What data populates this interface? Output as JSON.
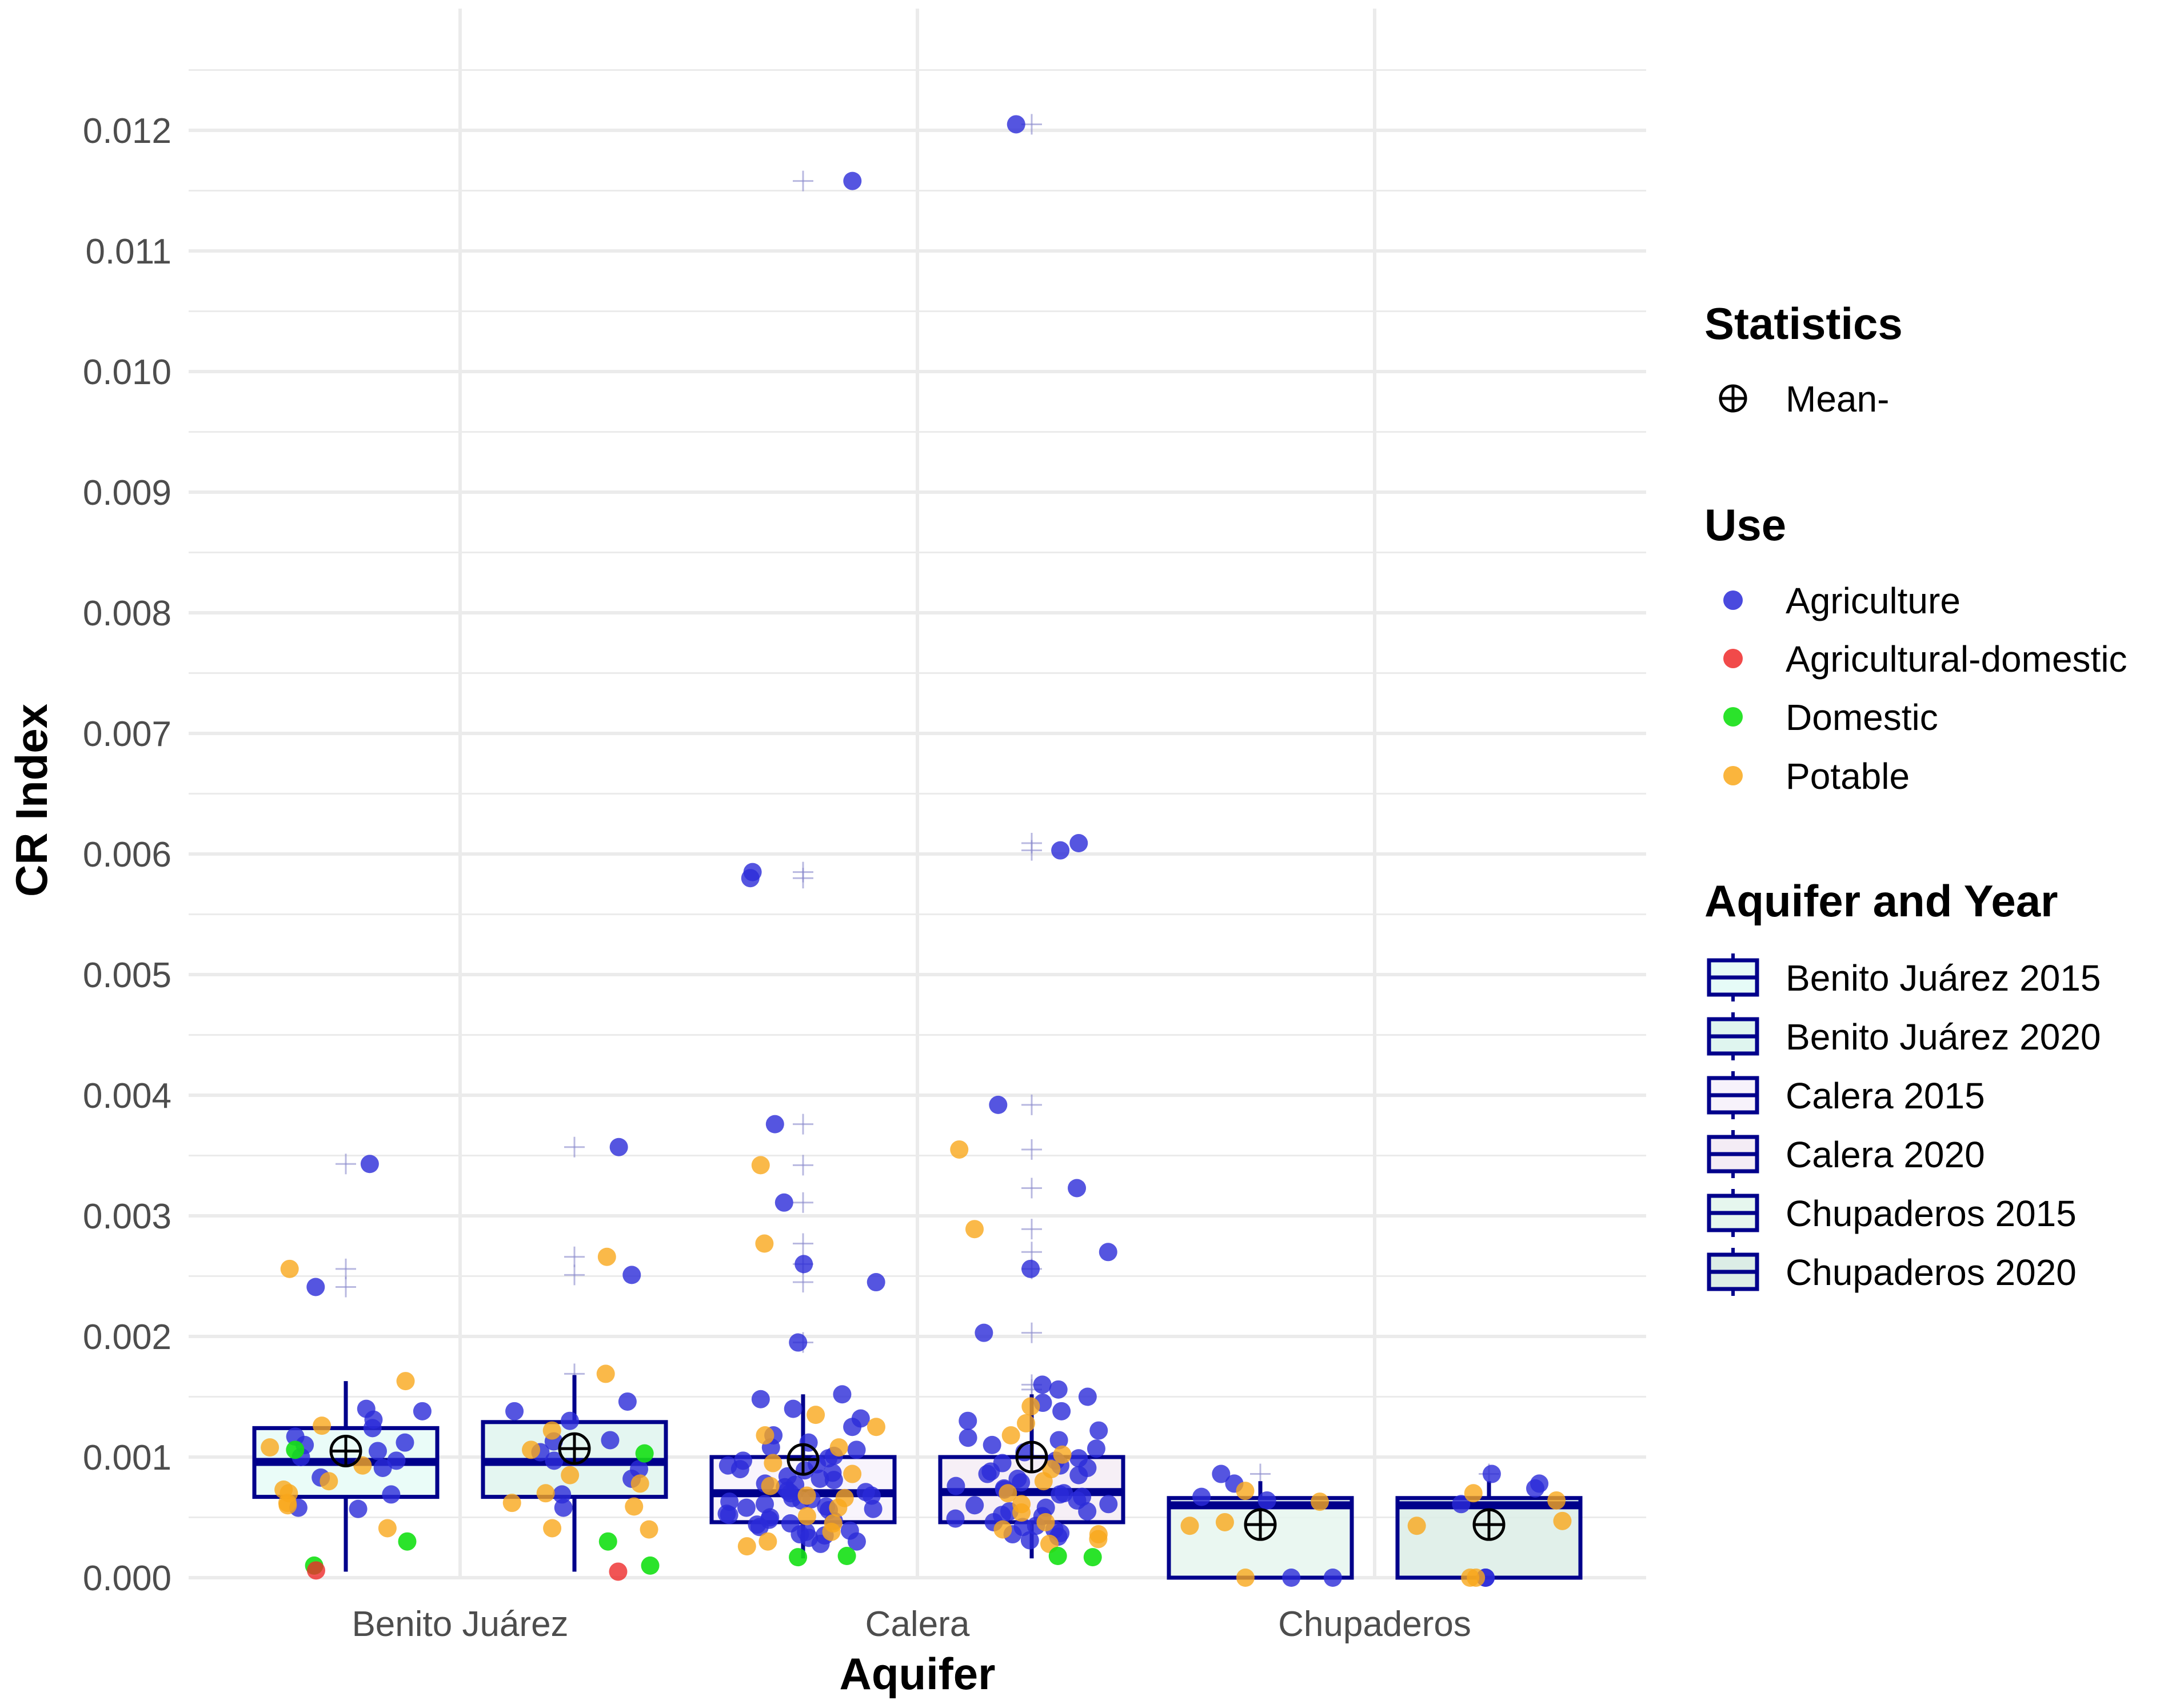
{
  "chart_data": {
    "type": "boxplot-jitter",
    "xlabel": "Aquifer",
    "ylabel": "CR Index",
    "ylim": [
      0,
      0.0126
    ],
    "y_ticks": [
      "0.000",
      "0.001",
      "0.002",
      "0.003",
      "0.004",
      "0.005",
      "0.006",
      "0.007",
      "0.008",
      "0.009",
      "0.010",
      "0.011",
      "0.012"
    ],
    "y_tick_values": [
      0,
      0.001,
      0.002,
      0.003,
      0.004,
      0.005,
      0.006,
      0.007,
      0.008,
      0.009,
      0.01,
      0.011,
      0.012
    ],
    "categories": [
      "Benito Juárez",
      "Calera",
      "Chupaderos"
    ],
    "colors": {
      "Agriculture": "#2a2ad8",
      "Agricultural-domestic": "#ee2a2a",
      "Domestic": "#14e014",
      "Potable": "#f9a81b",
      "box_stroke": "#00008b",
      "grid": "#ebebeb",
      "mean": "#000000"
    },
    "boxes": [
      {
        "group": "Benito Juárez 2015",
        "category": "Benito Juárez",
        "slot": 0,
        "q1": 0.00067,
        "median": 0.00096,
        "q3": 0.00124,
        "whisker_low": 5e-05,
        "whisker_high": 0.00163,
        "mean": 0.00105,
        "fill": "#e6fbf7"
      },
      {
        "group": "Benito Juárez 2020",
        "category": "Benito Juárez",
        "slot": 1,
        "q1": 0.00067,
        "median": 0.00096,
        "q3": 0.00129,
        "whisker_low": 5e-05,
        "whisker_high": 0.00168,
        "mean": 0.00107,
        "fill": "#dff5ef"
      },
      {
        "group": "Calera 2015",
        "category": "Calera",
        "slot": 0,
        "q1": 0.00046,
        "median": 0.0007,
        "q3": 0.001,
        "whisker_low": 0.00016,
        "whisker_high": 0.00152,
        "mean": 0.00098,
        "fill": "#f7f2fb"
      },
      {
        "group": "Calera 2020",
        "category": "Calera",
        "slot": 1,
        "q1": 0.00046,
        "median": 0.00071,
        "q3": 0.001,
        "whisker_low": 0.00016,
        "whisker_high": 0.00152,
        "mean": 0.001,
        "fill": "#f4ecf5"
      },
      {
        "group": "Chupaderos 2015",
        "category": "Chupaderos",
        "slot": 0,
        "q1": 0.0,
        "median": 0.0006,
        "q3": 0.00066,
        "whisker_low": 0.0,
        "whisker_high": 0.0008,
        "mean": 0.00044,
        "fill": "#e6f6ee"
      },
      {
        "group": "Chupaderos 2020",
        "category": "Chupaderos",
        "slot": 1,
        "q1": 0.0,
        "median": 0.0006,
        "q3": 0.00066,
        "whisker_low": 0.0,
        "whisker_high": 0.0008,
        "mean": 0.00044,
        "fill": "#dcede6"
      }
    ],
    "points": [
      {
        "group": "Benito Juárez 2015",
        "use": "Agriculture",
        "values": [
          0.00343,
          0.00241,
          0.0014,
          0.00138,
          0.00131,
          0.00124,
          0.00117,
          0.00112,
          0.00105,
          0.00097,
          0.00091,
          0.00083,
          0.00069,
          0.00058,
          0.00057,
          0.0011,
          0.001
        ]
      },
      {
        "group": "Benito Juárez 2015",
        "use": "Potable",
        "values": [
          0.00256,
          0.00163,
          0.00126,
          0.00108,
          0.00093,
          0.0008,
          0.00073,
          0.0007,
          0.00062,
          0.0006,
          0.00041
        ]
      },
      {
        "group": "Benito Juárez 2015",
        "use": "Domestic",
        "values": [
          0.00106,
          0.0003,
          0.0001
        ]
      },
      {
        "group": "Benito Juárez 2015",
        "use": "Agricultural-domestic",
        "values": [
          6e-05
        ]
      },
      {
        "group": "Benito Juárez 2020",
        "use": "Agriculture",
        "values": [
          0.00357,
          0.00251,
          0.00146,
          0.00138,
          0.0013,
          0.00114,
          0.00113,
          0.00104,
          0.00097,
          0.0009,
          0.00082,
          0.00069,
          0.00058
        ]
      },
      {
        "group": "Benito Juárez 2020",
        "use": "Potable",
        "values": [
          0.00266,
          0.00169,
          0.00122,
          0.00106,
          0.00085,
          0.00078,
          0.0007,
          0.00062,
          0.00059,
          0.00041,
          0.0004
        ]
      },
      {
        "group": "Benito Juárez 2020",
        "use": "Domestic",
        "values": [
          0.00103,
          0.0003,
          0.0001
        ]
      },
      {
        "group": "Benito Juárez 2020",
        "use": "Agricultural-domestic",
        "values": [
          5e-05
        ]
      },
      {
        "group": "Calera 2015",
        "use": "Agriculture",
        "values": [
          0.01158,
          0.00585,
          0.0058,
          0.00376,
          0.00311,
          0.0026,
          0.00245,
          0.00195,
          0.00152,
          0.00148,
          0.0014,
          0.00132,
          0.00125,
          0.00118,
          0.00112,
          0.00106,
          0.00101,
          0.00097,
          0.00094,
          0.0009,
          0.00087,
          0.00084,
          0.00081,
          0.00078,
          0.00075,
          0.00072,
          0.0007,
          0.00068,
          0.00066,
          0.00063,
          0.00061,
          0.00058,
          0.00056,
          0.00053,
          0.0005,
          0.00048,
          0.00045,
          0.00042,
          0.00039,
          0.00036,
          0.00033,
          0.0003,
          0.00028,
          0.00047,
          0.00052,
          0.00065,
          0.00077,
          0.00089,
          0.00099,
          0.00108,
          0.00064,
          0.00057,
          0.00044,
          0.00038,
          0.00071,
          0.00082,
          0.00093,
          0.00035,
          0.00059
        ]
      },
      {
        "group": "Calera 2015",
        "use": "Potable",
        "values": [
          0.00342,
          0.00277,
          0.00135,
          0.00125,
          0.00118,
          0.00108,
          0.00095,
          0.00086,
          0.00076,
          0.00068,
          0.00058,
          0.00051,
          0.00045,
          0.00038,
          0.0003,
          0.00026,
          0.00066
        ]
      },
      {
        "group": "Calera 2015",
        "use": "Domestic",
        "values": [
          0.00018,
          0.00017
        ]
      },
      {
        "group": "Calera 2020",
        "use": "Agriculture",
        "values": [
          0.01205,
          0.00609,
          0.00603,
          0.00392,
          0.00323,
          0.0027,
          0.00256,
          0.00203,
          0.0016,
          0.00156,
          0.0015,
          0.00145,
          0.00138,
          0.0013,
          0.00122,
          0.00116,
          0.0011,
          0.00104,
          0.00099,
          0.00095,
          0.00091,
          0.00088,
          0.00085,
          0.00082,
          0.00079,
          0.00076,
          0.00073,
          0.0007,
          0.00067,
          0.00064,
          0.00061,
          0.00058,
          0.00055,
          0.00052,
          0.00049,
          0.00046,
          0.00043,
          0.0004,
          0.00037,
          0.00034,
          0.00031,
          0.00097,
          0.00107,
          0.00069,
          0.0006,
          0.00051,
          0.00086,
          0.00114,
          0.00042,
          0.00074,
          0.00093,
          0.00055,
          0.00036
        ]
      },
      {
        "group": "Calera 2020",
        "use": "Potable",
        "values": [
          0.00355,
          0.00289,
          0.00142,
          0.00128,
          0.00118,
          0.00102,
          0.0009,
          0.0008,
          0.0007,
          0.00061,
          0.00054,
          0.00046,
          0.0004,
          0.00036,
          0.00032,
          0.00028
        ]
      },
      {
        "group": "Calera 2020",
        "use": "Domestic",
        "values": [
          0.00018,
          0.00017
        ]
      },
      {
        "group": "Chupaderos 2015",
        "use": "Agriculture",
        "values": [
          0.00086,
          0.00078,
          0.00067,
          0.00064,
          0.0,
          0.0
        ]
      },
      {
        "group": "Chupaderos 2015",
        "use": "Potable",
        "values": [
          0.00072,
          0.00063,
          0.00046,
          0.00043,
          0.0
        ]
      },
      {
        "group": "Chupaderos 2020",
        "use": "Agriculture",
        "values": [
          0.00086,
          0.00078,
          0.00074,
          0.00061,
          0.0,
          0.0
        ]
      },
      {
        "group": "Chupaderos 2020",
        "use": "Potable",
        "values": [
          0.0007,
          0.00064,
          0.00047,
          0.00043,
          0.0,
          0.0
        ]
      }
    ],
    "legend": {
      "statistics_title": "Statistics",
      "statistics_items": [
        "Mean-"
      ],
      "use_title": "Use",
      "use_items": [
        "Agriculture",
        "Agricultural-domestic",
        "Domestic",
        "Potable"
      ],
      "group_title": "Aquifer and Year",
      "group_items": [
        "Benito Juárez 2015",
        "Benito Juárez 2020",
        "Calera 2015",
        "Calera 2020",
        "Chupaderos 2015",
        "Chupaderos 2020"
      ],
      "placement": "right"
    }
  }
}
